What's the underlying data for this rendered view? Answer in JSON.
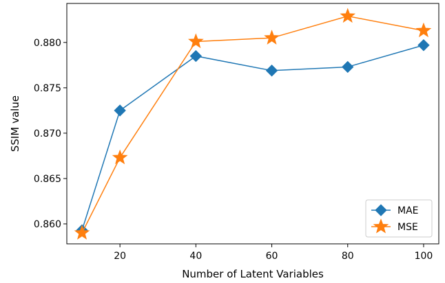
{
  "chart_data": {
    "type": "line",
    "xlabel": "Number of Latent Variables",
    "ylabel": "SSIM value",
    "xlim": [
      6,
      104
    ],
    "ylim": [
      0.8578,
      0.8843
    ],
    "xticks": [
      "20",
      "40",
      "60",
      "80",
      "100"
    ],
    "yticks": [
      "0.860",
      "0.865",
      "0.870",
      "0.875",
      "0.880"
    ],
    "grid": false,
    "legend_position": "lower-right",
    "series": [
      {
        "name": "MAE",
        "color": "#1f77b4",
        "marker": "diamond",
        "x": [
          10,
          20,
          40,
          60,
          80,
          100
        ],
        "y": [
          0.8593,
          0.8725,
          0.8785,
          0.8769,
          0.8773,
          0.8797
        ]
      },
      {
        "name": "MSE",
        "color": "#ff7f0e",
        "marker": "star",
        "x": [
          10,
          20,
          40,
          60,
          80,
          100
        ],
        "y": [
          0.859,
          0.8673,
          0.8801,
          0.8805,
          0.8829,
          0.8813
        ]
      }
    ]
  }
}
